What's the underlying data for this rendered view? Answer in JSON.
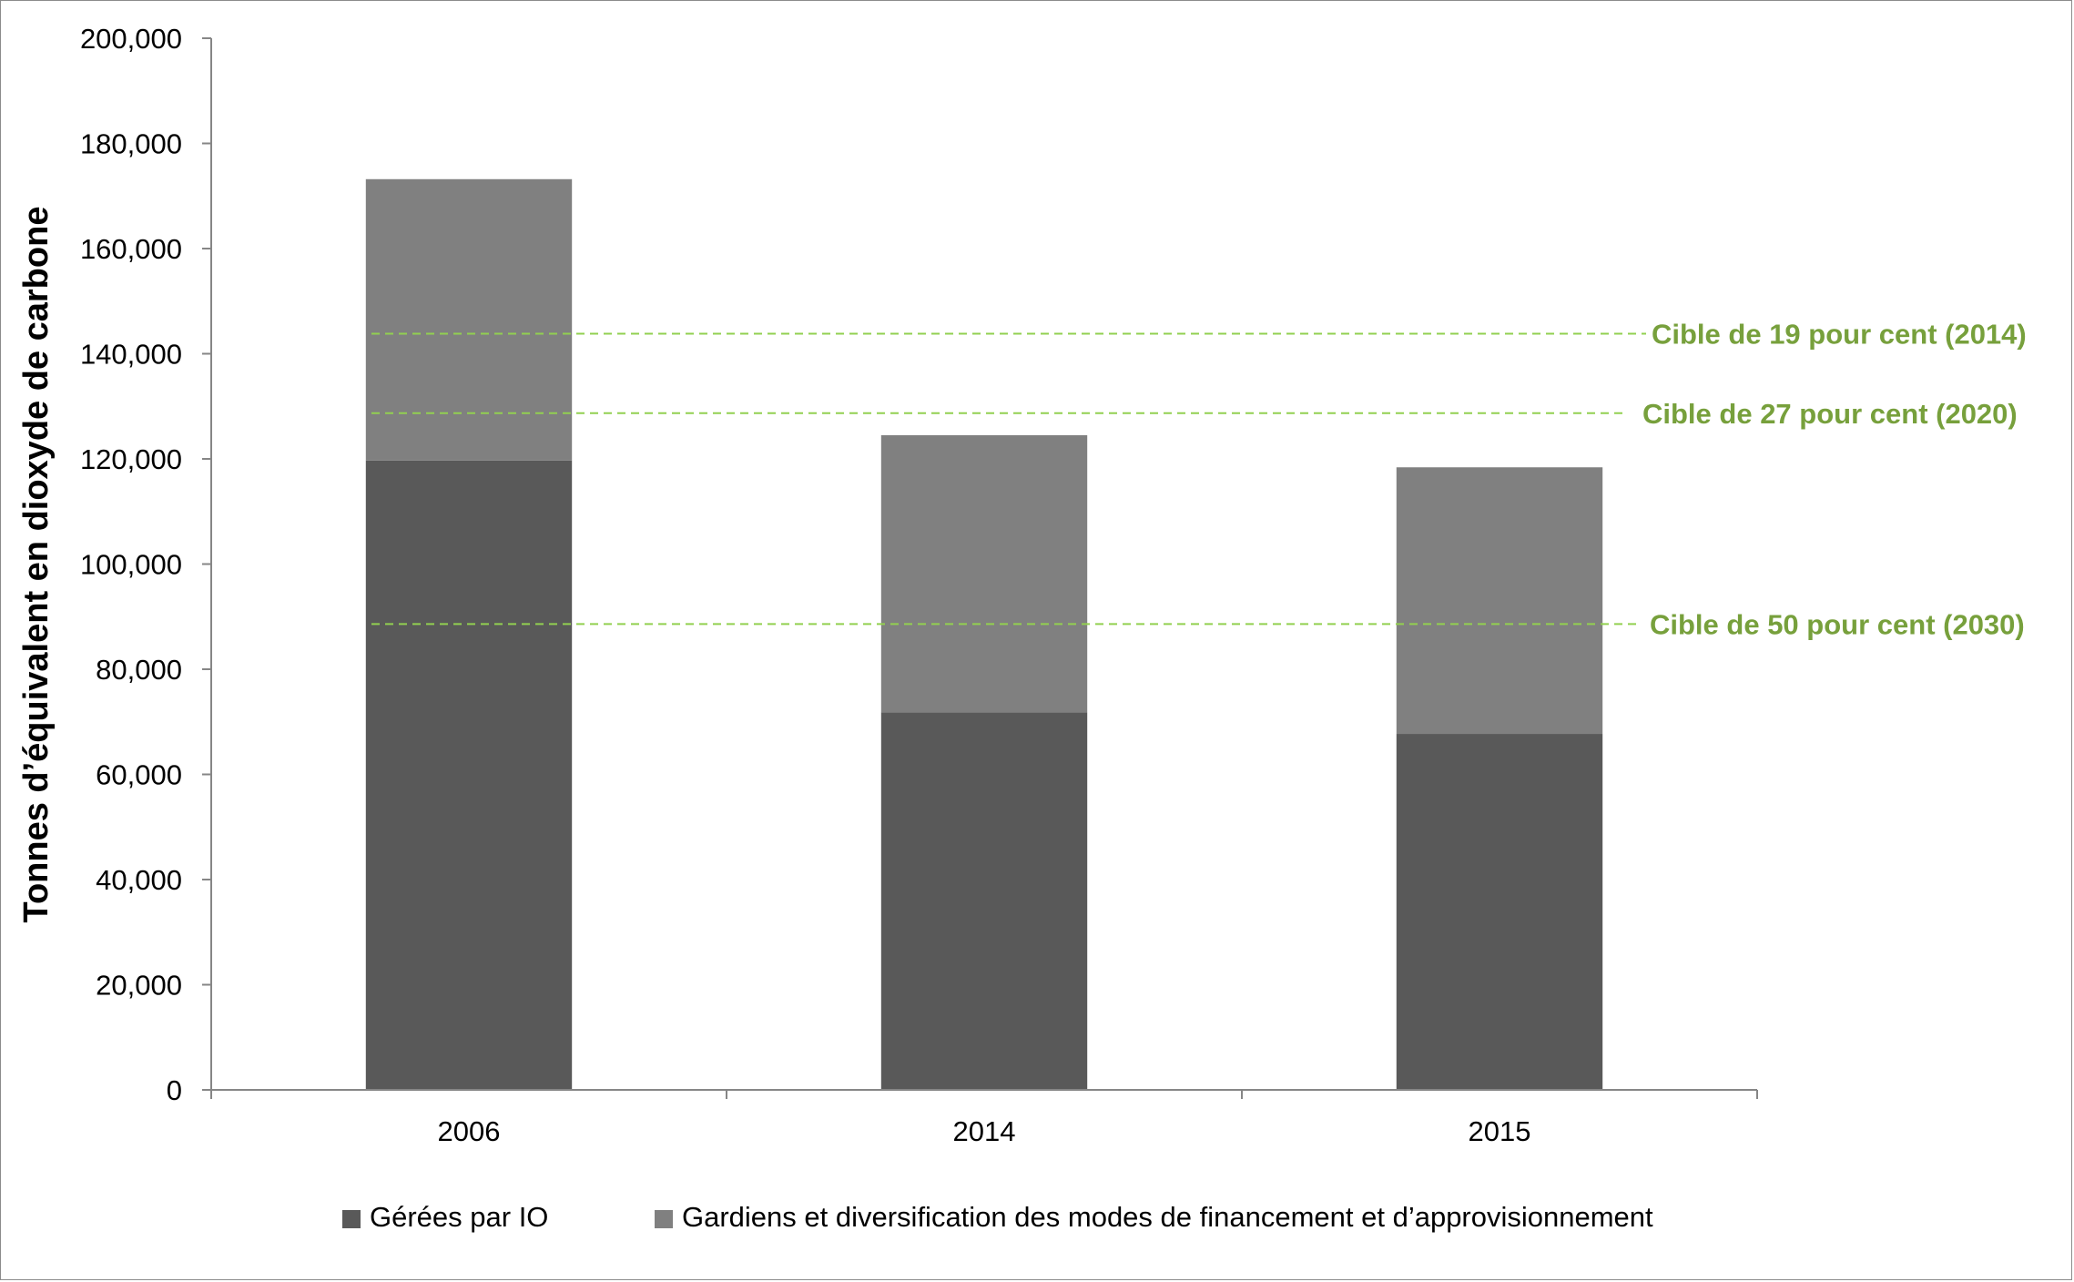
{
  "chart_data": {
    "type": "bar",
    "stacked": true,
    "title": "",
    "xlabel": "",
    "ylabel": "Tonnes d’équivalent en dioxyde de carbone",
    "ylim": [
      0,
      200000
    ],
    "yticks": [
      0,
      20000,
      40000,
      60000,
      80000,
      100000,
      120000,
      140000,
      160000,
      180000,
      200000
    ],
    "ytick_labels": [
      "0",
      "20,000",
      "40,000",
      "60,000",
      "80,000",
      "100,000",
      "120,000",
      "140,000",
      "160,000",
      "180,000",
      "200,000"
    ],
    "categories": [
      "2006",
      "2014",
      "2015"
    ],
    "series": [
      {
        "name": "Gérées par IO",
        "values": [
          119700,
          71800,
          67700
        ],
        "color": "#595959"
      },
      {
        "name": "Gardiens et diversification des modes de financement et d’approvisionnement",
        "values": [
          53500,
          52700,
          50700
        ],
        "color": "#808080"
      }
    ],
    "target_lines": [
      {
        "label": "Cible de 19 pour cent (2014)",
        "value": 143800
      },
      {
        "label": "Cible de 27 pour cent (2020)",
        "value": 128700
      },
      {
        "label": "Cible de 50 pour cent (2030)",
        "value": 88600
      }
    ],
    "target_color": "#77a03c",
    "target_line_color": "#92d050",
    "grid": false,
    "legend_position": "bottom"
  }
}
